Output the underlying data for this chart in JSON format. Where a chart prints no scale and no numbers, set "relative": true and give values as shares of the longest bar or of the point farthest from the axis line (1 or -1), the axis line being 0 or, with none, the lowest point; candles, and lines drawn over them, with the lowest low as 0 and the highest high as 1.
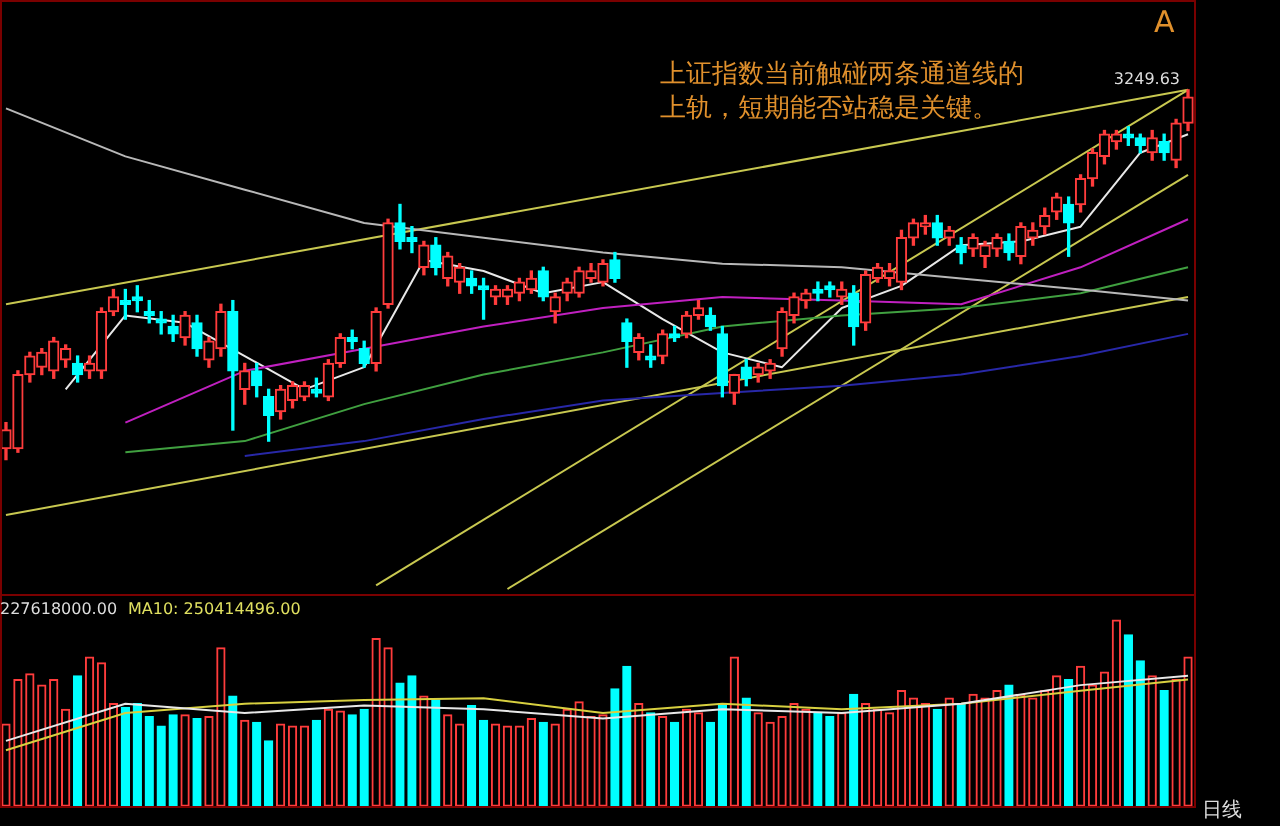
{
  "chart_data": [
    {
      "type": "candlestick",
      "relative": true,
      "annotations": [
        "上证指数当前触碰两条通道线的上轨，短期能否站稳是关键。",
        {
          "text": "3249.63",
          "y": 1
        },
        "A"
      ],
      "categories": [
        null,
        null,
        null,
        null,
        null,
        null,
        null,
        null,
        null,
        null,
        null,
        null,
        null,
        null,
        null,
        null,
        null,
        null,
        null,
        null,
        null,
        null,
        null,
        null,
        null,
        null,
        null,
        null,
        null,
        null,
        null,
        null,
        null,
        null,
        null,
        null,
        null,
        null,
        null,
        null,
        null,
        null,
        null,
        null,
        null,
        null,
        null,
        null,
        null,
        null,
        null,
        null,
        null,
        null,
        null,
        null,
        null,
        null,
        null,
        null,
        null,
        null,
        null,
        null,
        null,
        null,
        null,
        null,
        null,
        null,
        null,
        null,
        null,
        null,
        null,
        null,
        null,
        null,
        null,
        null,
        null,
        null,
        null,
        null,
        null,
        null,
        null,
        null,
        null,
        null,
        null,
        null,
        null,
        null,
        null,
        null,
        null,
        null,
        null,
        null
      ],
      "ohlc": [
        [
          0.03,
          0.1,
          0,
          0.08
        ],
        [
          0.03,
          0.24,
          0.02,
          0.23
        ],
        [
          0.23,
          0.29,
          0.21,
          0.28
        ],
        [
          0.25,
          0.3,
          0.23,
          0.29
        ],
        [
          0.24,
          0.33,
          0.22,
          0.32
        ],
        [
          0.27,
          0.31,
          0.25,
          0.3
        ],
        [
          0.26,
          0.28,
          0.21,
          0.23
        ],
        [
          0.24,
          0.28,
          0.22,
          0.26
        ],
        [
          0.24,
          0.41,
          0.22,
          0.4
        ],
        [
          0.4,
          0.46,
          0.39,
          0.44
        ],
        [
          0.43,
          0.46,
          0.38,
          0.42
        ],
        [
          0.44,
          0.47,
          0.4,
          0.43
        ],
        [
          0.4,
          0.43,
          0.37,
          0.39
        ],
        [
          0.38,
          0.4,
          0.34,
          0.37
        ],
        [
          0.36,
          0.39,
          0.32,
          0.34
        ],
        [
          0.33,
          0.4,
          0.31,
          0.39
        ],
        [
          0.37,
          0.39,
          0.28,
          0.3
        ],
        [
          0.27,
          0.33,
          0.25,
          0.32
        ],
        [
          0.3,
          0.42,
          0.28,
          0.4
        ],
        [
          0.4,
          0.43,
          0.08,
          0.24
        ],
        [
          0.19,
          0.26,
          0.15,
          0.24
        ],
        [
          0.24,
          0.26,
          0.17,
          0.2
        ],
        [
          0.17,
          0.19,
          0.05,
          0.12
        ],
        [
          0.13,
          0.2,
          0.11,
          0.19
        ],
        [
          0.16,
          0.21,
          0.14,
          0.2
        ],
        [
          0.17,
          0.21,
          0.16,
          0.2
        ],
        [
          0.19,
          0.22,
          0.17,
          0.18
        ],
        [
          0.17,
          0.27,
          0.16,
          0.26
        ],
        [
          0.26,
          0.34,
          0.25,
          0.33
        ],
        [
          0.33,
          0.35,
          0.3,
          0.32
        ],
        [
          0.3,
          0.32,
          0.25,
          0.26
        ],
        [
          0.26,
          0.41,
          0.24,
          0.4
        ],
        [
          0.42,
          0.65,
          0.41,
          0.64
        ],
        [
          0.64,
          0.69,
          0.57,
          0.59
        ],
        [
          0.6,
          0.63,
          0.56,
          0.59
        ],
        [
          0.52,
          0.59,
          0.5,
          0.58
        ],
        [
          0.58,
          0.6,
          0.5,
          0.52
        ],
        [
          0.49,
          0.56,
          0.47,
          0.55
        ],
        [
          0.48,
          0.53,
          0.45,
          0.52
        ],
        [
          0.49,
          0.51,
          0.45,
          0.47
        ],
        [
          0.47,
          0.49,
          0.38,
          0.46
        ],
        [
          0.44,
          0.47,
          0.42,
          0.46
        ],
        [
          0.44,
          0.47,
          0.42,
          0.46
        ],
        [
          0.45,
          0.49,
          0.43,
          0.48
        ],
        [
          0.46,
          0.51,
          0.45,
          0.49
        ],
        [
          0.51,
          0.52,
          0.43,
          0.44
        ],
        [
          0.4,
          0.45,
          0.37,
          0.44
        ],
        [
          0.45,
          0.49,
          0.43,
          0.48
        ],
        [
          0.45,
          0.52,
          0.44,
          0.51
        ],
        [
          0.49,
          0.53,
          0.48,
          0.51
        ],
        [
          0.48,
          0.54,
          0.47,
          0.53
        ],
        [
          0.54,
          0.56,
          0.48,
          0.49
        ],
        [
          0.37,
          0.38,
          0.25,
          0.32
        ],
        [
          0.29,
          0.34,
          0.27,
          0.33
        ],
        [
          0.28,
          0.31,
          0.25,
          0.27
        ],
        [
          0.28,
          0.35,
          0.26,
          0.34
        ],
        [
          0.34,
          0.36,
          0.32,
          0.33
        ],
        [
          0.34,
          0.4,
          0.33,
          0.39
        ],
        [
          0.39,
          0.43,
          0.38,
          0.41
        ],
        [
          0.39,
          0.41,
          0.35,
          0.36
        ],
        [
          0.34,
          0.36,
          0.17,
          0.2
        ],
        [
          0.18,
          0.23,
          0.15,
          0.23
        ],
        [
          0.25,
          0.27,
          0.2,
          0.22
        ],
        [
          0.23,
          0.26,
          0.21,
          0.25
        ],
        [
          0.24,
          0.27,
          0.22,
          0.26
        ],
        [
          0.3,
          0.41,
          0.28,
          0.4
        ],
        [
          0.39,
          0.45,
          0.37,
          0.44
        ],
        [
          0.43,
          0.46,
          0.41,
          0.45
        ],
        [
          0.46,
          0.48,
          0.43,
          0.45
        ],
        [
          0.47,
          0.48,
          0.44,
          0.46
        ],
        [
          0.44,
          0.48,
          0.42,
          0.46
        ],
        [
          0.45,
          0.47,
          0.31,
          0.36
        ],
        [
          0.37,
          0.51,
          0.35,
          0.5
        ],
        [
          0.49,
          0.53,
          0.48,
          0.52
        ],
        [
          0.49,
          0.53,
          0.47,
          0.51
        ],
        [
          0.48,
          0.62,
          0.46,
          0.6
        ],
        [
          0.6,
          0.65,
          0.58,
          0.64
        ],
        [
          0.63,
          0.66,
          0.61,
          0.64
        ],
        [
          0.64,
          0.66,
          0.58,
          0.6
        ],
        [
          0.6,
          0.63,
          0.58,
          0.62
        ],
        [
          0.58,
          0.6,
          0.53,
          0.56
        ],
        [
          0.57,
          0.61,
          0.55,
          0.6
        ],
        [
          0.55,
          0.59,
          0.52,
          0.58
        ],
        [
          0.57,
          0.61,
          0.55,
          0.6
        ],
        [
          0.59,
          0.61,
          0.54,
          0.56
        ],
        [
          0.55,
          0.64,
          0.53,
          0.63
        ],
        [
          0.6,
          0.64,
          0.58,
          0.62
        ],
        [
          0.63,
          0.68,
          0.61,
          0.66
        ],
        [
          0.67,
          0.72,
          0.65,
          0.71
        ],
        [
          0.69,
          0.71,
          0.55,
          0.64
        ],
        [
          0.69,
          0.77,
          0.67,
          0.76
        ],
        [
          0.76,
          0.84,
          0.74,
          0.83
        ],
        [
          0.82,
          0.89,
          0.8,
          0.88
        ],
        [
          0.86,
          0.89,
          0.84,
          0.88
        ],
        [
          0.88,
          0.9,
          0.85,
          0.87
        ],
        [
          0.87,
          0.88,
          0.83,
          0.85
        ],
        [
          0.83,
          0.89,
          0.81,
          0.87
        ],
        [
          0.86,
          0.88,
          0.81,
          0.83
        ],
        [
          0.81,
          0.92,
          0.79,
          0.91
        ],
        [
          0.91,
          1,
          0.89,
          0.98
        ]
      ],
      "series": [
        {
          "type": "line",
          "color": "#b8b8b8",
          "values": [
            0.95,
            null,
            null,
            null,
            null,
            null,
            null,
            null,
            null,
            null,
            0.82,
            null,
            null,
            null,
            null,
            null,
            null,
            null,
            null,
            null,
            0.73,
            null,
            null,
            null,
            null,
            null,
            null,
            null,
            null,
            null,
            0.64,
            null,
            null,
            null,
            null,
            null,
            null,
            null,
            null,
            null,
            0.6,
            null,
            null,
            null,
            null,
            null,
            null,
            null,
            null,
            null,
            0.56,
            null,
            null,
            null,
            null,
            null,
            null,
            null,
            null,
            null,
            0.53,
            null,
            null,
            null,
            null,
            null,
            null,
            null,
            null,
            null,
            0.52,
            null,
            null,
            null,
            null,
            null,
            null,
            null,
            null,
            null,
            0.49,
            null,
            null,
            null,
            null,
            null,
            null,
            null,
            null,
            null,
            0.46,
            null,
            null,
            null,
            null,
            null,
            null,
            null,
            null,
            0.43
          ]
        },
        {
          "type": "line",
          "color": "#c020c0",
          "values": [
            null,
            null,
            null,
            null,
            null,
            null,
            null,
            null,
            null,
            null,
            0.1,
            null,
            null,
            null,
            null,
            null,
            null,
            null,
            null,
            null,
            0.24,
            null,
            null,
            null,
            null,
            null,
            null,
            null,
            null,
            null,
            0.3,
            null,
            null,
            null,
            null,
            null,
            null,
            null,
            null,
            null,
            0.36,
            null,
            null,
            null,
            null,
            null,
            null,
            null,
            null,
            null,
            0.41,
            null,
            null,
            null,
            null,
            null,
            null,
            null,
            null,
            null,
            0.44,
            null,
            null,
            null,
            null,
            null,
            null,
            null,
            null,
            null,
            0.43,
            null,
            null,
            null,
            null,
            null,
            null,
            null,
            null,
            null,
            0.42,
            null,
            null,
            null,
            null,
            null,
            null,
            null,
            null,
            null,
            0.52,
            null,
            null,
            null,
            null,
            null,
            null,
            null,
            null,
            0.65
          ]
        },
        {
          "type": "line",
          "color": "#40a040",
          "values": [
            null,
            null,
            null,
            null,
            null,
            null,
            null,
            null,
            null,
            null,
            0.02,
            null,
            null,
            null,
            null,
            null,
            null,
            null,
            null,
            null,
            0.05,
            null,
            null,
            null,
            null,
            null,
            null,
            null,
            null,
            null,
            0.15,
            null,
            null,
            null,
            null,
            null,
            null,
            null,
            null,
            null,
            0.23,
            null,
            null,
            null,
            null,
            null,
            null,
            null,
            null,
            null,
            0.29,
            null,
            null,
            null,
            null,
            null,
            null,
            null,
            null,
            null,
            0.36,
            null,
            null,
            null,
            null,
            null,
            null,
            null,
            null,
            null,
            0.39,
            null,
            null,
            null,
            null,
            null,
            null,
            null,
            null,
            null,
            0.41,
            null,
            null,
            null,
            null,
            null,
            null,
            null,
            null,
            null,
            0.45,
            null,
            null,
            null,
            null,
            null,
            null,
            null,
            null,
            0.52
          ]
        },
        {
          "type": "line",
          "color": "#2828a8",
          "values": [
            null,
            null,
            null,
            null,
            null,
            null,
            null,
            null,
            null,
            null,
            null,
            null,
            null,
            null,
            null,
            null,
            null,
            null,
            null,
            null,
            0.01,
            null,
            null,
            null,
            null,
            null,
            null,
            null,
            null,
            null,
            0.05,
            null,
            null,
            null,
            null,
            null,
            null,
            null,
            null,
            null,
            0.11,
            null,
            null,
            null,
            null,
            null,
            null,
            null,
            null,
            null,
            0.16,
            null,
            null,
            null,
            null,
            null,
            null,
            null,
            null,
            null,
            0.18,
            null,
            null,
            null,
            null,
            null,
            null,
            null,
            null,
            null,
            0.2,
            null,
            null,
            null,
            null,
            null,
            null,
            null,
            null,
            null,
            0.23,
            null,
            null,
            null,
            null,
            null,
            null,
            null,
            null,
            null,
            0.28,
            null,
            null,
            null,
            null,
            null,
            null,
            null,
            null,
            0.34
          ]
        },
        {
          "type": "line",
          "color": "#e8e8e8",
          "values": [
            null,
            null,
            null,
            null,
            null,
            0.19,
            null,
            null,
            null,
            null,
            0.39,
            null,
            null,
            null,
            null,
            0.37,
            null,
            null,
            null,
            null,
            0.28,
            null,
            null,
            null,
            null,
            0.19,
            null,
            null,
            null,
            null,
            0.25,
            null,
            null,
            null,
            null,
            0.54,
            null,
            null,
            null,
            null,
            0.51,
            null,
            null,
            null,
            null,
            0.45,
            null,
            null,
            null,
            null,
            0.48,
            null,
            null,
            null,
            null,
            0.38,
            null,
            null,
            null,
            null,
            0.29,
            null,
            null,
            null,
            null,
            0.25,
            null,
            null,
            null,
            null,
            0.41,
            null,
            null,
            null,
            null,
            0.47,
            null,
            null,
            null,
            null,
            0.58,
            null,
            null,
            null,
            null,
            0.59,
            null,
            null,
            null,
            null,
            0.63,
            null,
            null,
            null,
            null,
            0.83,
            null,
            null,
            null,
            0.88
          ]
        },
        {
          "type": "line",
          "color": "#c8c850",
          "values": [
            0.42,
            null,
            null,
            null,
            null,
            null,
            null,
            null,
            null,
            null,
            null,
            null,
            null,
            null,
            null,
            null,
            null,
            null,
            null,
            null,
            null,
            null,
            null,
            null,
            null,
            null,
            null,
            null,
            null,
            null,
            null,
            null,
            null,
            null,
            null,
            null,
            null,
            null,
            null,
            null,
            null,
            null,
            null,
            null,
            null,
            null,
            null,
            null,
            null,
            null,
            null,
            null,
            null,
            null,
            null,
            null,
            null,
            null,
            null,
            null,
            null,
            null,
            null,
            null,
            null,
            null,
            null,
            null,
            null,
            null,
            null,
            null,
            null,
            null,
            null,
            null,
            null,
            null,
            null,
            null,
            null,
            null,
            null,
            null,
            null,
            null,
            null,
            null,
            null,
            null,
            null,
            null,
            null,
            null,
            null,
            null,
            null,
            null,
            null,
            1.0
          ]
        },
        {
          "type": "line",
          "color": "#c8c850",
          "values": [
            -0.15,
            null,
            null,
            null,
            null,
            null,
            null,
            null,
            null,
            null,
            null,
            null,
            null,
            null,
            null,
            null,
            null,
            null,
            null,
            null,
            null,
            null,
            null,
            null,
            null,
            null,
            null,
            null,
            null,
            null,
            null,
            null,
            null,
            null,
            null,
            null,
            null,
            null,
            null,
            null,
            null,
            null,
            null,
            null,
            null,
            null,
            null,
            null,
            null,
            null,
            null,
            null,
            null,
            null,
            null,
            null,
            null,
            null,
            null,
            null,
            null,
            null,
            null,
            null,
            null,
            null,
            null,
            null,
            null,
            null,
            null,
            null,
            null,
            null,
            null,
            null,
            null,
            null,
            null,
            null,
            null,
            null,
            null,
            null,
            null,
            null,
            null,
            null,
            null,
            null,
            null,
            null,
            null,
            null,
            null,
            null,
            null,
            null,
            null,
            0.44
          ]
        },
        {
          "type": "line",
          "color": "#c8c850",
          "values": [
            null,
            null,
            null,
            null,
            null,
            null,
            null,
            null,
            null,
            null,
            null,
            null,
            null,
            null,
            null,
            null,
            null,
            null,
            null,
            null,
            null,
            null,
            null,
            null,
            null,
            null,
            null,
            null,
            null,
            null,
            null,
            -0.34,
            null,
            null,
            null,
            null,
            null,
            null,
            null,
            null,
            null,
            null,
            null,
            null,
            null,
            null,
            null,
            null,
            null,
            null,
            null,
            null,
            null,
            null,
            null,
            null,
            null,
            null,
            null,
            null,
            null,
            null,
            null,
            null,
            null,
            null,
            null,
            null,
            null,
            null,
            null,
            null,
            null,
            null,
            null,
            null,
            null,
            null,
            null,
            null,
            null,
            null,
            null,
            null,
            null,
            null,
            null,
            null,
            null,
            null,
            null,
            null,
            null,
            null,
            null,
            null,
            null,
            null,
            null,
            1.0
          ]
        },
        {
          "type": "line",
          "color": "#c8c850",
          "values": [
            null,
            null,
            null,
            null,
            null,
            null,
            null,
            null,
            null,
            null,
            null,
            null,
            null,
            null,
            null,
            null,
            null,
            null,
            null,
            null,
            null,
            null,
            null,
            null,
            null,
            null,
            null,
            null,
            null,
            null,
            null,
            null,
            null,
            null,
            null,
            null,
            null,
            null,
            null,
            null,
            null,
            null,
            -0.35,
            null,
            null,
            null,
            null,
            null,
            null,
            null,
            null,
            null,
            null,
            null,
            null,
            null,
            null,
            null,
            null,
            null,
            null,
            null,
            null,
            null,
            null,
            null,
            null,
            null,
            null,
            null,
            null,
            null,
            null,
            null,
            null,
            null,
            null,
            null,
            null,
            null,
            null,
            null,
            null,
            null,
            null,
            null,
            null,
            null,
            null,
            null,
            null,
            null,
            null,
            null,
            null,
            null,
            null,
            null,
            null,
            0.77
          ]
        }
      ]
    },
    {
      "type": "bar",
      "relative": true,
      "annotations": [
        "227618000.00",
        "MA10: 250414496.00",
        "日线"
      ],
      "categories": [
        null,
        null,
        null,
        null,
        null,
        null,
        null,
        null,
        null,
        null,
        null,
        null,
        null,
        null,
        null,
        null,
        null,
        null,
        null,
        null,
        null,
        null,
        null,
        null,
        null,
        null,
        null,
        null,
        null,
        null,
        null,
        null,
        null,
        null,
        null,
        null,
        null,
        null,
        null,
        null,
        null,
        null,
        null,
        null,
        null,
        null,
        null,
        null,
        null,
        null,
        null,
        null,
        null,
        null,
        null,
        null,
        null,
        null,
        null,
        null,
        null,
        null,
        null,
        null,
        null,
        null,
        null,
        null,
        null,
        null,
        null,
        null,
        null,
        null,
        null,
        null,
        null,
        null,
        null,
        null,
        null,
        null,
        null,
        null,
        null,
        null,
        null,
        null,
        null,
        null,
        null,
        null,
        null,
        null,
        null,
        null,
        null,
        null,
        null,
        null
      ],
      "series": [
        {
          "type": "bar",
          "values": [
            0.44,
            0.68,
            0.71,
            0.65,
            0.68,
            0.52,
            0.7,
            0.8,
            0.77,
            0.55,
            0.53,
            0.55,
            0.48,
            0.43,
            0.49,
            0.49,
            0.47,
            0.48,
            0.85,
            0.59,
            0.46,
            0.45,
            0.35,
            0.44,
            0.43,
            0.43,
            0.46,
            0.52,
            0.51,
            0.49,
            0.52,
            0.9,
            0.85,
            0.66,
            0.7,
            0.59,
            0.57,
            0.49,
            0.44,
            0.54,
            0.46,
            0.44,
            0.43,
            0.43,
            0.47,
            0.45,
            0.44,
            0.52,
            0.56,
            0.48,
            0.49,
            0.63,
            0.75,
            0.55,
            0.5,
            0.48,
            0.45,
            0.52,
            0.5,
            0.45,
            0.55,
            0.8,
            0.58,
            0.5,
            0.45,
            0.48,
            0.55,
            0.52,
            0.5,
            0.48,
            0.5,
            0.6,
            0.55,
            0.52,
            0.5,
            0.62,
            0.58,
            0.55,
            0.52,
            0.58,
            0.55,
            0.6,
            0.58,
            0.62,
            0.65,
            0.6,
            0.58,
            0.62,
            0.7,
            0.68,
            0.75,
            0.65,
            0.72,
            1.0,
            0.92,
            0.78,
            0.7,
            0.62,
            0.68,
            0.8
          ],
          "colors": [
            "#ff3c3c",
            "#ff3c3c",
            "#ff3c3c",
            "#ff3c3c",
            "#ff3c3c",
            "#ff3c3c",
            "#00ffff",
            "#ff3c3c",
            "#ff3c3c",
            "#ff3c3c",
            "#00ffff",
            "#00ffff",
            "#00ffff",
            "#00ffff",
            "#00ffff",
            "#ff3c3c",
            "#00ffff",
            "#ff3c3c",
            "#ff3c3c",
            "#00ffff",
            "#ff3c3c",
            "#00ffff",
            "#00ffff",
            "#ff3c3c",
            "#ff3c3c",
            "#ff3c3c",
            "#00ffff",
            "#ff3c3c",
            "#ff3c3c",
            "#00ffff",
            "#00ffff",
            "#ff3c3c",
            "#ff3c3c",
            "#00ffff",
            "#00ffff",
            "#ff3c3c",
            "#00ffff",
            "#ff3c3c",
            "#ff3c3c",
            "#00ffff",
            "#00ffff",
            "#ff3c3c",
            "#ff3c3c",
            "#ff3c3c",
            "#ff3c3c",
            "#00ffff",
            "#ff3c3c",
            "#ff3c3c",
            "#ff3c3c",
            "#ff3c3c",
            "#ff3c3c",
            "#00ffff",
            "#00ffff",
            "#ff3c3c",
            "#00ffff",
            "#ff3c3c",
            "#00ffff",
            "#ff3c3c",
            "#ff3c3c",
            "#00ffff",
            "#00ffff",
            "#ff3c3c",
            "#00ffff",
            "#ff3c3c",
            "#ff3c3c",
            "#ff3c3c",
            "#ff3c3c",
            "#ff3c3c",
            "#00ffff",
            "#00ffff",
            "#ff3c3c",
            "#00ffff",
            "#ff3c3c",
            "#ff3c3c",
            "#ff3c3c",
            "#ff3c3c",
            "#ff3c3c",
            "#ff3c3c",
            "#00ffff",
            "#ff3c3c",
            "#00ffff",
            "#ff3c3c",
            "#ff3c3c",
            "#ff3c3c",
            "#00ffff",
            "#ff3c3c",
            "#ff3c3c",
            "#ff3c3c",
            "#ff3c3c",
            "#00ffff",
            "#ff3c3c",
            "#ff3c3c",
            "#ff3c3c",
            "#ff3c3c",
            "#00ffff",
            "#00ffff",
            "#ff3c3c",
            "#00ffff",
            "#ff3c3c",
            "#ff3c3c"
          ]
        },
        {
          "type": "line",
          "color": "#e8e8e8",
          "values": [
            0.35,
            null,
            null,
            null,
            null,
            null,
            null,
            null,
            null,
            null,
            0.55,
            null,
            null,
            null,
            null,
            null,
            null,
            null,
            null,
            null,
            0.5,
            null,
            null,
            null,
            null,
            null,
            null,
            null,
            null,
            null,
            0.54,
            null,
            null,
            null,
            null,
            null,
            null,
            null,
            null,
            null,
            0.52,
            null,
            null,
            null,
            null,
            null,
            null,
            null,
            null,
            null,
            0.47,
            null,
            null,
            null,
            null,
            null,
            null,
            null,
            null,
            null,
            0.52,
            null,
            null,
            null,
            null,
            null,
            null,
            null,
            null,
            null,
            0.5,
            null,
            null,
            null,
            null,
            null,
            null,
            null,
            null,
            null,
            0.55,
            null,
            null,
            null,
            null,
            null,
            null,
            null,
            null,
            null,
            0.65,
            null,
            null,
            null,
            null,
            null,
            null,
            null,
            null,
            0.7
          ]
        },
        {
          "type": "line",
          "color": "#d8d040",
          "values": [
            0.3,
            null,
            null,
            null,
            null,
            null,
            null,
            null,
            null,
            null,
            0.5,
            null,
            null,
            null,
            null,
            null,
            null,
            null,
            null,
            null,
            0.55,
            null,
            null,
            null,
            null,
            null,
            null,
            null,
            null,
            null,
            0.57,
            null,
            null,
            null,
            null,
            null,
            null,
            null,
            null,
            null,
            0.58,
            null,
            null,
            null,
            null,
            null,
            null,
            null,
            null,
            null,
            0.5,
            null,
            null,
            null,
            null,
            null,
            null,
            null,
            null,
            null,
            0.55,
            null,
            null,
            null,
            null,
            null,
            null,
            null,
            null,
            null,
            0.52,
            null,
            null,
            null,
            null,
            null,
            null,
            null,
            null,
            null,
            0.55,
            null,
            null,
            null,
            null,
            null,
            null,
            null,
            null,
            null,
            0.62,
            null,
            null,
            null,
            null,
            null,
            null,
            null,
            null,
            0.68
          ]
        }
      ]
    }
  ]
}
